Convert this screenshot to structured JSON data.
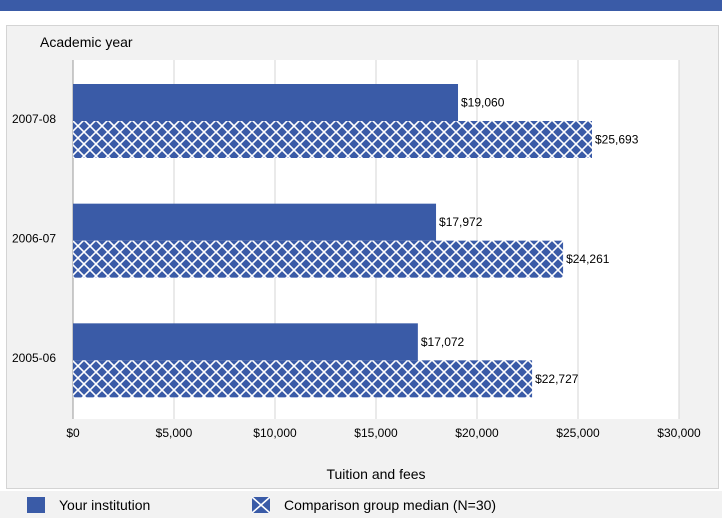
{
  "chart_data": {
    "type": "bar",
    "orientation": "horizontal",
    "categories": [
      "2007-08",
      "2006-07",
      "2005-06"
    ],
    "series": [
      {
        "name": "Your institution",
        "values": [
          19060,
          17972,
          17072
        ],
        "labels": [
          "$19,060",
          "$17,972",
          "$17,072"
        ],
        "color": "#3a5ba7",
        "pattern": "solid"
      },
      {
        "name": "Comparison group median (N=30)",
        "values": [
          25693,
          24261,
          22727
        ],
        "labels": [
          "$25,693",
          "$24,261",
          "$22,727"
        ],
        "color": "#3a5ba7",
        "pattern": "crosshatch"
      }
    ],
    "ylabel": "Academic year",
    "xlabel": "Tuition and fees",
    "xlim": [
      0,
      30000
    ],
    "xticks": [
      0,
      5000,
      10000,
      15000,
      20000,
      25000,
      30000
    ],
    "xtick_labels": [
      "$0",
      "$5,000",
      "$10,000",
      "$15,000",
      "$20,000",
      "$25,000",
      "$30,000"
    ],
    "grid": true,
    "legend_position": "bottom"
  },
  "legend": {
    "items": [
      {
        "label": "Your institution"
      },
      {
        "label": "Comparison group median (N=30)"
      }
    ]
  }
}
